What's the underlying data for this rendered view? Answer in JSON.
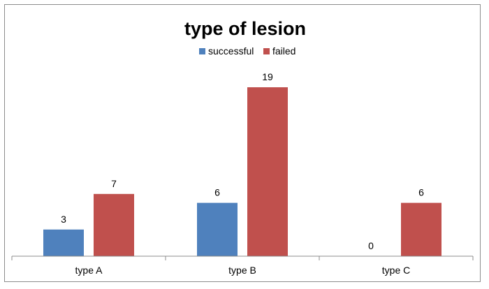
{
  "chart_data": {
    "type": "bar",
    "title": "type of lesion",
    "categories": [
      "type A",
      "type B",
      "type C"
    ],
    "series": [
      {
        "name": "successful",
        "values": [
          3,
          6,
          0
        ]
      },
      {
        "name": "failed",
        "values": [
          7,
          19,
          6
        ]
      }
    ],
    "xlabel": "",
    "ylabel": "",
    "ylim": [
      0,
      19
    ],
    "grid": false,
    "legend_position": "top",
    "data_labels": true,
    "colors": {
      "successful": "#4f81bd",
      "failed": "#c0504d"
    }
  }
}
